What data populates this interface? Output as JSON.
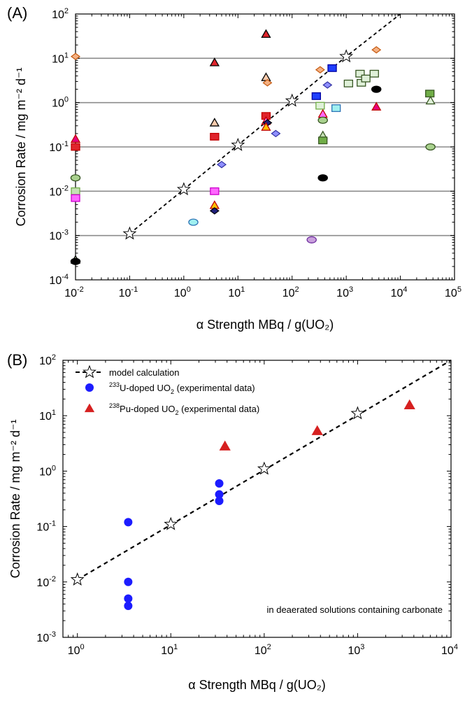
{
  "chart_data": [
    {
      "type": "scatter",
      "panel_label": "(A)",
      "xlabel": "α Strength  MBq / g(UO₂)",
      "ylabel": "Corrosion Rate / mg m⁻² d⁻¹",
      "x_scale": "log",
      "y_scale": "log",
      "xlim": [
        0.01,
        100000
      ],
      "ylim": [
        0.0001,
        100
      ],
      "x_ticks": [
        0.01,
        0.1,
        1,
        10,
        100,
        1000,
        10000,
        100000
      ],
      "x_tick_labels": [
        {
          "base": "10",
          "exp": "-2"
        },
        {
          "base": "10",
          "exp": "-1"
        },
        {
          "base": "10",
          "exp": "0"
        },
        {
          "base": "10",
          "exp": "1"
        },
        {
          "base": "10",
          "exp": "2"
        },
        {
          "base": "10",
          "exp": "3"
        },
        {
          "base": "10",
          "exp": "4"
        },
        {
          "base": "10",
          "exp": "5"
        }
      ],
      "y_ticks": [
        0.0001,
        0.001,
        0.01,
        0.1,
        1,
        10,
        100
      ],
      "y_tick_labels": [
        {
          "base": "10",
          "exp": "-4"
        },
        {
          "base": "10",
          "exp": "-3"
        },
        {
          "base": "10",
          "exp": "-2"
        },
        {
          "base": "10",
          "exp": "-1"
        },
        {
          "base": "10",
          "exp": "0"
        },
        {
          "base": "10",
          "exp": "1"
        },
        {
          "base": "10",
          "exp": "2"
        }
      ],
      "grid": "horizontal gray lines at decades",
      "model_line": {
        "style": "dashed",
        "x": [
          0.1,
          1,
          10,
          100,
          1000,
          10000
        ],
        "y": [
          0.0011,
          0.011,
          0.11,
          1.1,
          11,
          100
        ],
        "marker": "star"
      },
      "points": [
        {
          "x": 0.01,
          "y": 11,
          "shape": "diamond",
          "color": "#f4b183",
          "edge": "#c55a11"
        },
        {
          "x": 0.01,
          "y": 0.15,
          "shape": "triangle",
          "color": "#e6007e",
          "edge": "#c00000"
        },
        {
          "x": 0.01,
          "y": 0.1,
          "shape": "square",
          "color": "#e0242c",
          "edge": "#c00000"
        },
        {
          "x": 0.01,
          "y": 0.02,
          "shape": "ellipse",
          "color": "#a9d18e",
          "edge": "#385723"
        },
        {
          "x": 0.01,
          "y": 0.01,
          "shape": "square",
          "color": "#c5e0b4",
          "edge": "#70ad47"
        },
        {
          "x": 0.01,
          "y": 0.007,
          "shape": "square",
          "color": "#ff66ff",
          "edge": "#cc00cc"
        },
        {
          "x": 0.01,
          "y": 0.00028,
          "shape": "triangle",
          "color": "#c5e0b4",
          "edge": "#000000"
        },
        {
          "x": 0.01,
          "y": 0.00026,
          "shape": "ellipse",
          "color": "#000000",
          "edge": "#000000"
        },
        {
          "x": 1.5,
          "y": 0.002,
          "shape": "ellipse",
          "color": "#a0f0f0",
          "edge": "#2e75b6"
        },
        {
          "x": 3.7,
          "y": 8,
          "shape": "triangle",
          "color": "#e0242c",
          "edge": "#000000"
        },
        {
          "x": 3.7,
          "y": 0.35,
          "shape": "triangle",
          "color": "#f8cbad",
          "edge": "#000000"
        },
        {
          "x": 3.7,
          "y": 0.17,
          "shape": "square",
          "color": "#e0242c",
          "edge": "#c00000"
        },
        {
          "x": 3.7,
          "y": 0.01,
          "shape": "square",
          "color": "#ff66ff",
          "edge": "#cc00cc"
        },
        {
          "x": 3.7,
          "y": 0.0048,
          "shape": "triangle",
          "color": "#ffc000",
          "edge": "#c00000"
        },
        {
          "x": 3.7,
          "y": 0.0036,
          "shape": "diamond",
          "color": "#1f1f7a",
          "edge": "#000000"
        },
        {
          "x": 5,
          "y": 0.04,
          "shape": "diamond",
          "color": "#8f8fff",
          "edge": "#3030a0"
        },
        {
          "x": 33,
          "y": 35,
          "shape": "triangle",
          "color": "#e0242c",
          "edge": "#000000"
        },
        {
          "x": 33,
          "y": 3.7,
          "shape": "triangle",
          "color": "#f8cbad",
          "edge": "#000000"
        },
        {
          "x": 35,
          "y": 2.8,
          "shape": "diamond",
          "color": "#f4b183",
          "edge": "#c55a11"
        },
        {
          "x": 33,
          "y": 0.5,
          "shape": "square",
          "color": "#e0242c",
          "edge": "#c00000"
        },
        {
          "x": 33,
          "y": 0.38,
          "shape": "triangle",
          "color": "#ff66ff",
          "edge": "#c00000"
        },
        {
          "x": 35,
          "y": 0.35,
          "shape": "diamond",
          "color": "#1f1f7a",
          "edge": "#000000"
        },
        {
          "x": 33,
          "y": 0.28,
          "shape": "triangle",
          "color": "#ffc000",
          "edge": "#c00000"
        },
        {
          "x": 50,
          "y": 0.2,
          "shape": "diamond",
          "color": "#8f8fff",
          "edge": "#3030a0"
        },
        {
          "x": 230,
          "y": 0.0008,
          "shape": "ellipse",
          "color": "#c9a0dc",
          "edge": "#7030a0"
        },
        {
          "x": 330,
          "y": 5.5,
          "shape": "diamond",
          "color": "#f4b183",
          "edge": "#c55a11"
        },
        {
          "x": 280,
          "y": 1.4,
          "shape": "square",
          "color": "#1f3fff",
          "edge": "#0000a0"
        },
        {
          "x": 330,
          "y": 0.85,
          "shape": "square",
          "color": "#dff0d8",
          "edge": "#70ad47"
        },
        {
          "x": 370,
          "y": 0.55,
          "shape": "triangle",
          "color": "#ff66ff",
          "edge": "#c00000"
        },
        {
          "x": 370,
          "y": 0.4,
          "shape": "ellipse",
          "color": "#a9d18e",
          "edge": "#385723"
        },
        {
          "x": 370,
          "y": 0.18,
          "shape": "triangle",
          "color": "#c5e0b4",
          "edge": "#385723"
        },
        {
          "x": 370,
          "y": 0.14,
          "shape": "square",
          "color": "#70ad47",
          "edge": "#385723"
        },
        {
          "x": 370,
          "y": 0.02,
          "shape": "ellipse",
          "color": "#000000",
          "edge": "#000000"
        },
        {
          "x": 450,
          "y": 2.5,
          "shape": "diamond",
          "color": "#8f8fff",
          "edge": "#3030a0"
        },
        {
          "x": 550,
          "y": 6,
          "shape": "square",
          "color": "#1f3fff",
          "edge": "#0000a0"
        },
        {
          "x": 650,
          "y": 0.75,
          "shape": "square",
          "color": "#a0f0f0",
          "edge": "#2e75b6"
        },
        {
          "x": 1100,
          "y": 2.7,
          "shape": "square",
          "color": "#dff0d8",
          "edge": "#385723"
        },
        {
          "x": 1800,
          "y": 4.5,
          "shape": "square",
          "color": "#dff0d8",
          "edge": "#385723"
        },
        {
          "x": 1900,
          "y": 2.8,
          "shape": "square",
          "color": "#dff0d8",
          "edge": "#385723"
        },
        {
          "x": 2300,
          "y": 3.5,
          "shape": "square",
          "color": "#dff0d8",
          "edge": "#385723"
        },
        {
          "x": 3300,
          "y": 4.5,
          "shape": "square",
          "color": "#dff0d8",
          "edge": "#385723"
        },
        {
          "x": 3600,
          "y": 15.5,
          "shape": "diamond",
          "color": "#f4b183",
          "edge": "#c55a11"
        },
        {
          "x": 3600,
          "y": 2,
          "shape": "ellipse",
          "color": "#000000",
          "edge": "#000000"
        },
        {
          "x": 3600,
          "y": 0.8,
          "shape": "triangle",
          "color": "#e6007e",
          "edge": "#c00000"
        },
        {
          "x": 35000,
          "y": 1.6,
          "shape": "square",
          "color": "#70ad47",
          "edge": "#385723"
        },
        {
          "x": 36000,
          "y": 1.1,
          "shape": "triangle",
          "color": "#dff0d8",
          "edge": "#385723"
        },
        {
          "x": 36000,
          "y": 0.1,
          "shape": "ellipse",
          "color": "#a9d18e",
          "edge": "#385723"
        }
      ]
    },
    {
      "type": "scatter",
      "panel_label": "(B)",
      "xlabel": "α Strength  MBq / g(UO₂)",
      "ylabel": "Corrosion Rate / mg m⁻² d⁻¹",
      "x_scale": "log",
      "y_scale": "log",
      "xlim": [
        0.7,
        10000
      ],
      "ylim": [
        0.001,
        100
      ],
      "x_ticks": [
        1,
        10,
        100,
        1000,
        10000
      ],
      "x_tick_labels": [
        {
          "base": "10",
          "exp": "0"
        },
        {
          "base": "10",
          "exp": "1"
        },
        {
          "base": "10",
          "exp": "2"
        },
        {
          "base": "10",
          "exp": "3"
        },
        {
          "base": "10",
          "exp": "4"
        }
      ],
      "y_ticks": [
        0.001,
        0.01,
        0.1,
        1,
        10,
        100
      ],
      "y_tick_labels": [
        {
          "base": "10",
          "exp": "-3"
        },
        {
          "base": "10",
          "exp": "-2"
        },
        {
          "base": "10",
          "exp": "-1"
        },
        {
          "base": "10",
          "exp": "0"
        },
        {
          "base": "10",
          "exp": "1"
        },
        {
          "base": "10",
          "exp": "2"
        }
      ],
      "legend_position": "top-left",
      "annotation": "in deaerated solutions containing carbonate",
      "series": [
        {
          "name": "model calculation",
          "marker": "star",
          "line": "dashed",
          "color": "#000000",
          "x": [
            1,
            10,
            100,
            1000
          ],
          "y": [
            0.011,
            0.11,
            1.1,
            11
          ],
          "line_x": [
            1,
            10000
          ],
          "line_y": [
            0.011,
            100
          ]
        },
        {
          "name_sup": "233",
          "name_rest1": "U-doped UO",
          "name_sub": "2",
          "name_rest2": " (experimental data)",
          "marker": "circle",
          "color": "#1c1cff",
          "x": [
            3.5,
            3.5,
            3.5,
            3.5,
            33,
            33,
            33
          ],
          "y": [
            0.12,
            0.01,
            0.005,
            0.0037,
            0.6,
            0.38,
            0.29
          ]
        },
        {
          "name_sup": "238",
          "name_rest1": "Pu-doped UO",
          "name_sub": "2",
          "name_rest2": " (experimental data)",
          "marker": "triangle",
          "color": "#d62020",
          "x": [
            38,
            370,
            3600
          ],
          "y": [
            2.8,
            5.3,
            15.5
          ]
        }
      ]
    }
  ]
}
